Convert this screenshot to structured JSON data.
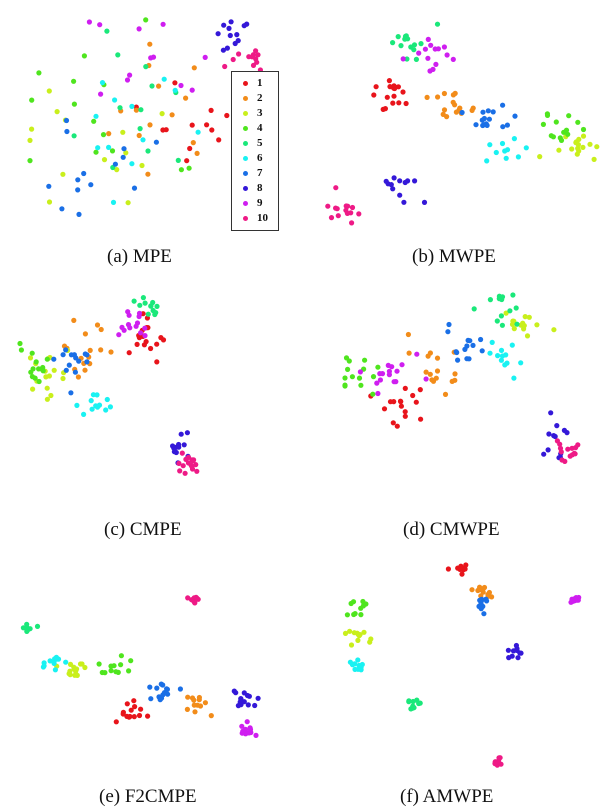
{
  "colors": {
    "1": "#e8141b",
    "2": "#f28c1a",
    "3": "#c9ef1c",
    "4": "#4fe51e",
    "5": "#1ae87a",
    "6": "#19f2f2",
    "7": "#1a6fe6",
    "8": "#3418d8",
    "9": "#cf1ef0",
    "10": "#ee1a86"
  },
  "legend": {
    "entries": [
      {
        "label": "1",
        "color": "#e8141b"
      },
      {
        "label": "2",
        "color": "#f28c1a"
      },
      {
        "label": "3",
        "color": "#c9ef1c"
      },
      {
        "label": "4",
        "color": "#4fe51e"
      },
      {
        "label": "5",
        "color": "#1ae87a"
      },
      {
        "label": "6",
        "color": "#19f2f2"
      },
      {
        "label": "7",
        "color": "#1a6fe6"
      },
      {
        "label": "8",
        "color": "#3418d8"
      },
      {
        "label": "9",
        "color": "#cf1ef0"
      },
      {
        "label": "10",
        "color": "#ee1a86"
      }
    ]
  },
  "chart_data": [
    {
      "type": "scatter",
      "title": "(a) MPE",
      "clusters": [
        {
          "label": "1",
          "x": 0.72,
          "y": 0.52,
          "spread": 0.13,
          "n": 12
        },
        {
          "label": "2",
          "x": 0.55,
          "y": 0.5,
          "spread": 0.13,
          "n": 14
        },
        {
          "label": "3",
          "x": 0.3,
          "y": 0.62,
          "spread": 0.18,
          "n": 14
        },
        {
          "label": "4",
          "x": 0.35,
          "y": 0.45,
          "spread": 0.2,
          "n": 14
        },
        {
          "label": "5",
          "x": 0.33,
          "y": 0.4,
          "spread": 0.2,
          "n": 12
        },
        {
          "label": "6",
          "x": 0.45,
          "y": 0.52,
          "spread": 0.15,
          "n": 12
        },
        {
          "label": "7",
          "x": 0.22,
          "y": 0.7,
          "spread": 0.15,
          "n": 14
        },
        {
          "label": "8",
          "x": 0.87,
          "y": 0.1,
          "spread": 0.04,
          "n": 12
        },
        {
          "label": "9",
          "x": 0.5,
          "y": 0.25,
          "spread": 0.13,
          "n": 12
        },
        {
          "label": "10",
          "x": 0.92,
          "y": 0.22,
          "spread": 0.04,
          "n": 12
        }
      ]
    },
    {
      "type": "scatter",
      "title": "(b) MWPE",
      "clusters": [
        {
          "label": "1",
          "x": 0.23,
          "y": 0.38,
          "spread": 0.05,
          "n": 16
        },
        {
          "label": "2",
          "x": 0.48,
          "y": 0.42,
          "spread": 0.05,
          "n": 16
        },
        {
          "label": "3",
          "x": 0.92,
          "y": 0.62,
          "spread": 0.04,
          "n": 16
        },
        {
          "label": "4",
          "x": 0.85,
          "y": 0.55,
          "spread": 0.04,
          "n": 14
        },
        {
          "label": "5",
          "x": 0.3,
          "y": 0.1,
          "spread": 0.04,
          "n": 14
        },
        {
          "label": "6",
          "x": 0.66,
          "y": 0.64,
          "spread": 0.04,
          "n": 10
        },
        {
          "label": "7",
          "x": 0.58,
          "y": 0.48,
          "spread": 0.04,
          "n": 16
        },
        {
          "label": "8",
          "x": 0.28,
          "y": 0.82,
          "spread": 0.04,
          "n": 12
        },
        {
          "label": "9",
          "x": 0.4,
          "y": 0.18,
          "spread": 0.04,
          "n": 14
        },
        {
          "label": "10",
          "x": 0.07,
          "y": 0.92,
          "spread": 0.03,
          "n": 14
        }
      ]
    },
    {
      "type": "scatter",
      "title": "(c) CMPE",
      "clusters": [
        {
          "label": "1",
          "x": 0.62,
          "y": 0.25,
          "spread": 0.05,
          "n": 18
        },
        {
          "label": "2",
          "x": 0.33,
          "y": 0.3,
          "spread": 0.07,
          "n": 16
        },
        {
          "label": "3",
          "x": 0.12,
          "y": 0.43,
          "spread": 0.05,
          "n": 16
        },
        {
          "label": "4",
          "x": 0.08,
          "y": 0.36,
          "spread": 0.05,
          "n": 14
        },
        {
          "label": "5",
          "x": 0.62,
          "y": 0.08,
          "spread": 0.04,
          "n": 12
        },
        {
          "label": "6",
          "x": 0.38,
          "y": 0.58,
          "spread": 0.05,
          "n": 12
        },
        {
          "label": "7",
          "x": 0.27,
          "y": 0.35,
          "spread": 0.05,
          "n": 14
        },
        {
          "label": "8",
          "x": 0.78,
          "y": 0.78,
          "spread": 0.04,
          "n": 12
        },
        {
          "label": "9",
          "x": 0.53,
          "y": 0.15,
          "spread": 0.05,
          "n": 14
        },
        {
          "label": "10",
          "x": 0.82,
          "y": 0.86,
          "spread": 0.03,
          "n": 16
        }
      ]
    },
    {
      "type": "scatter",
      "title": "(d) CMWPE",
      "clusters": [
        {
          "label": "1",
          "x": 0.24,
          "y": 0.55,
          "spread": 0.05,
          "n": 16
        },
        {
          "label": "2",
          "x": 0.4,
          "y": 0.35,
          "spread": 0.06,
          "n": 16
        },
        {
          "label": "3",
          "x": 0.75,
          "y": 0.14,
          "spread": 0.05,
          "n": 14
        },
        {
          "label": "4",
          "x": 0.06,
          "y": 0.4,
          "spread": 0.05,
          "n": 14
        },
        {
          "label": "5",
          "x": 0.65,
          "y": 0.08,
          "spread": 0.05,
          "n": 14
        },
        {
          "label": "6",
          "x": 0.68,
          "y": 0.32,
          "spread": 0.04,
          "n": 12
        },
        {
          "label": "7",
          "x": 0.5,
          "y": 0.25,
          "spread": 0.05,
          "n": 14
        },
        {
          "label": "8",
          "x": 0.88,
          "y": 0.75,
          "spread": 0.04,
          "n": 12
        },
        {
          "label": "9",
          "x": 0.18,
          "y": 0.38,
          "spread": 0.05,
          "n": 16
        },
        {
          "label": "10",
          "x": 0.92,
          "y": 0.78,
          "spread": 0.03,
          "n": 14
        }
      ]
    },
    {
      "type": "scatter",
      "title": "(e) F2CMPE",
      "clusters": [
        {
          "label": "1",
          "x": 0.43,
          "y": 0.65,
          "spread": 0.03,
          "n": 14
        },
        {
          "label": "2",
          "x": 0.68,
          "y": 0.6,
          "spread": 0.03,
          "n": 12
        },
        {
          "label": "3",
          "x": 0.22,
          "y": 0.4,
          "spread": 0.03,
          "n": 14
        },
        {
          "label": "4",
          "x": 0.38,
          "y": 0.4,
          "spread": 0.03,
          "n": 12
        },
        {
          "label": "5",
          "x": 0.05,
          "y": 0.2,
          "spread": 0.02,
          "n": 10
        },
        {
          "label": "6",
          "x": 0.14,
          "y": 0.38,
          "spread": 0.03,
          "n": 12
        },
        {
          "label": "7",
          "x": 0.56,
          "y": 0.54,
          "spread": 0.03,
          "n": 14
        },
        {
          "label": "8",
          "x": 0.87,
          "y": 0.58,
          "spread": 0.03,
          "n": 14
        },
        {
          "label": "9",
          "x": 0.88,
          "y": 0.75,
          "spread": 0.02,
          "n": 12
        },
        {
          "label": "10",
          "x": 0.68,
          "y": 0.04,
          "spread": 0.015,
          "n": 10
        }
      ]
    },
    {
      "type": "scatter",
      "title": "(f) AMWPE",
      "clusters": [
        {
          "label": "1",
          "x": 0.48,
          "y": 0.06,
          "spread": 0.015,
          "n": 10
        },
        {
          "label": "2",
          "x": 0.57,
          "y": 0.17,
          "spread": 0.02,
          "n": 12
        },
        {
          "label": "3",
          "x": 0.09,
          "y": 0.38,
          "spread": 0.02,
          "n": 12
        },
        {
          "label": "4",
          "x": 0.1,
          "y": 0.25,
          "spread": 0.02,
          "n": 10
        },
        {
          "label": "5",
          "x": 0.3,
          "y": 0.68,
          "spread": 0.015,
          "n": 10
        },
        {
          "label": "6",
          "x": 0.08,
          "y": 0.5,
          "spread": 0.02,
          "n": 12
        },
        {
          "label": "7",
          "x": 0.56,
          "y": 0.22,
          "spread": 0.02,
          "n": 12
        },
        {
          "label": "8",
          "x": 0.68,
          "y": 0.44,
          "spread": 0.015,
          "n": 10
        },
        {
          "label": "9",
          "x": 0.92,
          "y": 0.2,
          "spread": 0.01,
          "n": 10
        },
        {
          "label": "10",
          "x": 0.62,
          "y": 0.94,
          "spread": 0.01,
          "n": 10
        }
      ]
    }
  ]
}
